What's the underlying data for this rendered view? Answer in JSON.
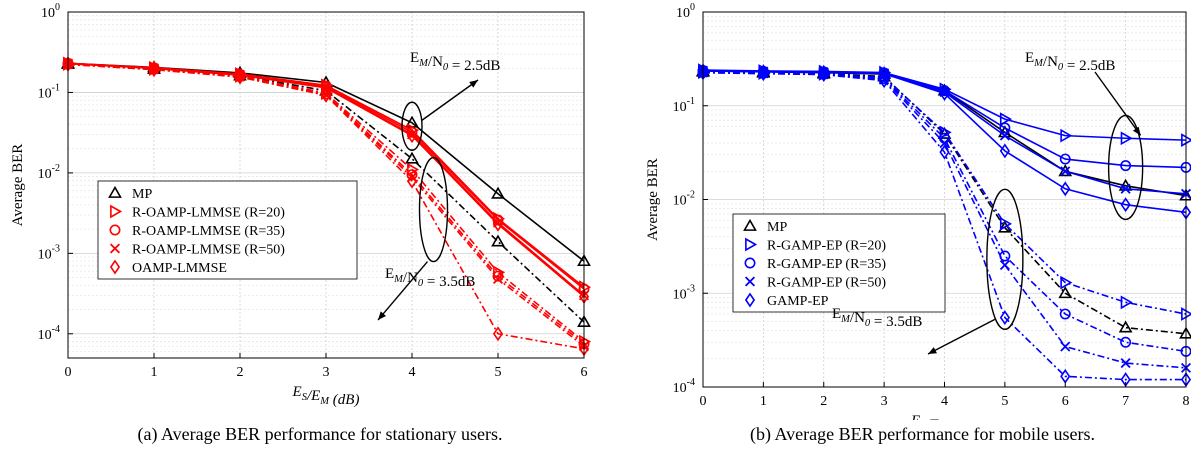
{
  "captions": {
    "a": "(a) Average BER performance for stationary users.",
    "b": "(b) Average BER performance for mobile users."
  },
  "chart_data": [
    {
      "type": "line",
      "title": "",
      "xlabel": "E_S/E_M (dB)",
      "ylabel": "Average BER",
      "xlim": [
        0,
        6
      ],
      "ylim": [
        5e-05,
        1
      ],
      "yscale": "log",
      "grid": true,
      "legend_position": "left-center",
      "x": [
        0,
        1,
        2,
        3,
        4,
        5,
        6
      ],
      "xticks": [
        "0",
        "1",
        "2",
        "3",
        "4",
        "5",
        "6"
      ],
      "yticks": [
        "10^0",
        "10^-1",
        "10^-2",
        "10^-3",
        "10^-4"
      ],
      "legend": [
        "MP",
        "R-OAMP-LMMSE (R=20)",
        "R-OAMP-LMMSE (R=35)",
        "R-OAMP-LMMSE (R=50)",
        "OAMP-LMMSE"
      ],
      "annotations": [
        {
          "text": "E_M/N_0 = 2.5dB",
          "at_x": 4,
          "at_y": 0.038
        },
        {
          "text": "E_M/N_0 = 3.5dB",
          "at_x": 4.25,
          "at_y": 0.0035
        }
      ],
      "series": [
        {
          "name": "MP",
          "snr": "2.5dB",
          "color": "#000000",
          "marker": "triangle",
          "dash": "solid",
          "values": [
            0.23,
            0.205,
            0.175,
            0.133,
            0.042,
            0.0055,
            0.0008
          ]
        },
        {
          "name": "MP",
          "snr": "3.5dB",
          "color": "#000000",
          "marker": "triangle",
          "dash": "dashdot",
          "values": [
            0.225,
            0.195,
            0.162,
            0.105,
            0.015,
            0.0014,
            0.00014
          ]
        },
        {
          "name": "R-OAMP-LMMSE (R=20)",
          "snr": "2.5dB",
          "color": "#ff0000",
          "marker": "triangle-right",
          "dash": "solid",
          "values": [
            0.23,
            0.203,
            0.17,
            0.123,
            0.034,
            0.0027,
            0.00038
          ]
        },
        {
          "name": "R-OAMP-LMMSE (R=35)",
          "snr": "2.5dB",
          "color": "#ff0000",
          "marker": "circle",
          "dash": "solid",
          "values": [
            0.23,
            0.202,
            0.168,
            0.12,
            0.032,
            0.0026,
            0.00036
          ]
        },
        {
          "name": "R-OAMP-LMMSE (R=50)",
          "snr": "2.5dB",
          "color": "#ff0000",
          "marker": "x",
          "dash": "solid",
          "values": [
            0.229,
            0.2,
            0.166,
            0.117,
            0.03,
            0.0024,
            0.0003
          ]
        },
        {
          "name": "OAMP-LMMSE",
          "snr": "2.5dB",
          "color": "#ff0000",
          "marker": "diamond",
          "dash": "solid",
          "values": [
            0.228,
            0.199,
            0.164,
            0.114,
            0.029,
            0.0023,
            0.00029
          ]
        },
        {
          "name": "R-OAMP-LMMSE (R=20)",
          "snr": "3.5dB",
          "color": "#ff0000",
          "marker": "triangle-right",
          "dash": "dashdot",
          "values": [
            0.225,
            0.195,
            0.16,
            0.098,
            0.011,
            0.00058,
            8e-05
          ]
        },
        {
          "name": "R-OAMP-LMMSE (R=35)",
          "snr": "3.5dB",
          "color": "#ff0000",
          "marker": "circle",
          "dash": "dashdot",
          "values": [
            0.224,
            0.194,
            0.158,
            0.096,
            0.0095,
            0.00052,
            7.5e-05
          ]
        },
        {
          "name": "R-OAMP-LMMSE (R=50)",
          "snr": "3.5dB",
          "color": "#ff0000",
          "marker": "x",
          "dash": "dashdot",
          "values": [
            0.224,
            0.193,
            0.157,
            0.094,
            0.0088,
            0.00048,
            7e-05
          ]
        },
        {
          "name": "OAMP-LMMSE",
          "snr": "3.5dB",
          "color": "#ff0000",
          "marker": "diamond",
          "dash": "dashdot",
          "values": [
            0.223,
            0.192,
            0.155,
            0.092,
            0.0079,
            0.0001,
            6.5e-05
          ]
        }
      ]
    },
    {
      "type": "line",
      "title": "",
      "xlabel": "E_S/E_M (dB)",
      "ylabel": "Average BER",
      "xlim": [
        0,
        8
      ],
      "ylim": [
        0.0001,
        1
      ],
      "yscale": "log",
      "grid": true,
      "legend_position": "left-center",
      "x": [
        0,
        1,
        2,
        3,
        4,
        5,
        6,
        7,
        8
      ],
      "xticks": [
        "0",
        "1",
        "2",
        "3",
        "4",
        "5",
        "6",
        "7",
        "8"
      ],
      "yticks": [
        "10^0",
        "10^-1",
        "10^-2",
        "10^-3",
        "10^-4"
      ],
      "legend": [
        "MP",
        "R-GAMP-EP (R=20)",
        "R-GAMP-EP (R=35)",
        "R-GAMP-EP (R=50)",
        "GAMP-EP"
      ],
      "annotations": [
        {
          "text": "E_M/N_0 = 2.5dB",
          "at_x": 7,
          "at_y": 0.022
        },
        {
          "text": "E_M/N_0 = 3.5dB",
          "at_x": 5,
          "at_y": 0.0023
        }
      ],
      "series": [
        {
          "name": "MP",
          "snr": "2.5dB",
          "color": "#000000",
          "marker": "triangle",
          "dash": "solid",
          "values": [
            0.235,
            0.23,
            0.225,
            0.218,
            0.145,
            0.052,
            0.02,
            0.014,
            0.011
          ]
        },
        {
          "name": "MP",
          "snr": "3.5dB",
          "color": "#000000",
          "marker": "triangle",
          "dash": "dashdot",
          "values": [
            0.23,
            0.225,
            0.22,
            0.205,
            0.05,
            0.005,
            0.001,
            0.00043,
            0.00037
          ]
        },
        {
          "name": "R-GAMP-EP (R=20)",
          "snr": "2.5dB",
          "color": "#0000ff",
          "marker": "triangle-right",
          "dash": "solid",
          "values": [
            0.24,
            0.235,
            0.232,
            0.226,
            0.15,
            0.072,
            0.048,
            0.045,
            0.043
          ]
        },
        {
          "name": "R-GAMP-EP (R=35)",
          "snr": "2.5dB",
          "color": "#0000ff",
          "marker": "circle",
          "dash": "solid",
          "values": [
            0.238,
            0.233,
            0.23,
            0.224,
            0.145,
            0.058,
            0.027,
            0.023,
            0.022
          ]
        },
        {
          "name": "R-GAMP-EP (R=50)",
          "snr": "2.5dB",
          "color": "#0000ff",
          "marker": "x",
          "dash": "solid",
          "values": [
            0.237,
            0.232,
            0.228,
            0.222,
            0.14,
            0.048,
            0.02,
            0.013,
            0.0115
          ]
        },
        {
          "name": "GAMP-EP",
          "snr": "2.5dB",
          "color": "#0000ff",
          "marker": "diamond",
          "dash": "solid",
          "values": [
            0.236,
            0.231,
            0.227,
            0.22,
            0.135,
            0.033,
            0.013,
            0.0088,
            0.0073
          ]
        },
        {
          "name": "R-GAMP-EP (R=20)",
          "snr": "3.5dB",
          "color": "#0000ff",
          "marker": "triangle-right",
          "dash": "dashdot",
          "values": [
            0.228,
            0.223,
            0.218,
            0.2,
            0.052,
            0.0055,
            0.0013,
            0.0008,
            0.0006
          ]
        },
        {
          "name": "R-GAMP-EP (R=35)",
          "snr": "3.5dB",
          "color": "#0000ff",
          "marker": "circle",
          "dash": "dashdot",
          "values": [
            0.227,
            0.222,
            0.217,
            0.195,
            0.045,
            0.0025,
            0.0006,
            0.0003,
            0.00024
          ]
        },
        {
          "name": "R-GAMP-EP (R=50)",
          "snr": "3.5dB",
          "color": "#0000ff",
          "marker": "x",
          "dash": "dashdot",
          "values": [
            0.226,
            0.221,
            0.216,
            0.19,
            0.04,
            0.002,
            0.00027,
            0.00018,
            0.00016
          ]
        },
        {
          "name": "GAMP-EP",
          "snr": "3.5dB",
          "color": "#0000ff",
          "marker": "diamond",
          "dash": "dashdot",
          "values": [
            0.225,
            0.22,
            0.215,
            0.185,
            0.032,
            0.00055,
            0.00013,
            0.00012,
            0.00012
          ]
        }
      ]
    }
  ]
}
